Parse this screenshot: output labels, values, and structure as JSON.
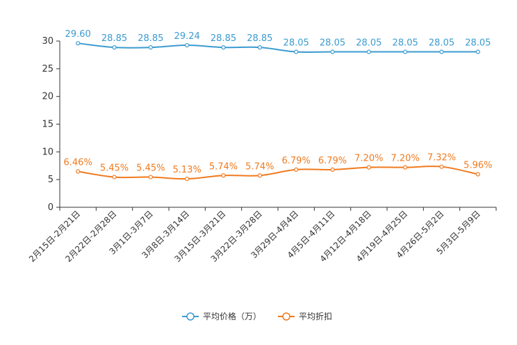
{
  "chart_data": {
    "type": "line",
    "title": "",
    "xlabel": "",
    "ylabel": "",
    "ylim": [
      0,
      30
    ],
    "yticks": [
      0,
      5,
      10,
      15,
      20,
      25,
      30
    ],
    "categories": [
      "2月15日-2月21日",
      "2月22日-2月28日",
      "3月1日-3月7日",
      "3月8日-3月14日",
      "3月15日-3月21日",
      "3月22日-3月28日",
      "3月29日-4月4日",
      "4月5日-4月11日",
      "4月12日-4月18日",
      "4月19日-4月25日",
      "4月26日-5月2日",
      "5月3日-5月9日"
    ],
    "series": [
      {
        "name": "平均价格（万）",
        "color": "#3a9bd0",
        "values": [
          29.6,
          28.85,
          28.85,
          29.24,
          28.85,
          28.85,
          28.05,
          28.05,
          28.05,
          28.05,
          28.05,
          28.05
        ],
        "labels": [
          "29.60",
          "28.85",
          "28.85",
          "29.24",
          "28.85",
          "28.85",
          "28.05",
          "28.05",
          "28.05",
          "28.05",
          "28.05",
          "28.05"
        ]
      },
      {
        "name": "平均折扣",
        "color": "#f07a1e",
        "values": [
          6.46,
          5.45,
          5.45,
          5.13,
          5.74,
          5.74,
          6.79,
          6.79,
          7.2,
          7.2,
          7.32,
          5.96
        ],
        "labels": [
          "6.46%",
          "5.45%",
          "5.45%",
          "5.13%",
          "5.74%",
          "5.74%",
          "6.79%",
          "6.79%",
          "7.20%",
          "7.20%",
          "7.32%",
          "5.96%"
        ]
      }
    ],
    "legend_position": "bottom-center",
    "grid": false
  }
}
